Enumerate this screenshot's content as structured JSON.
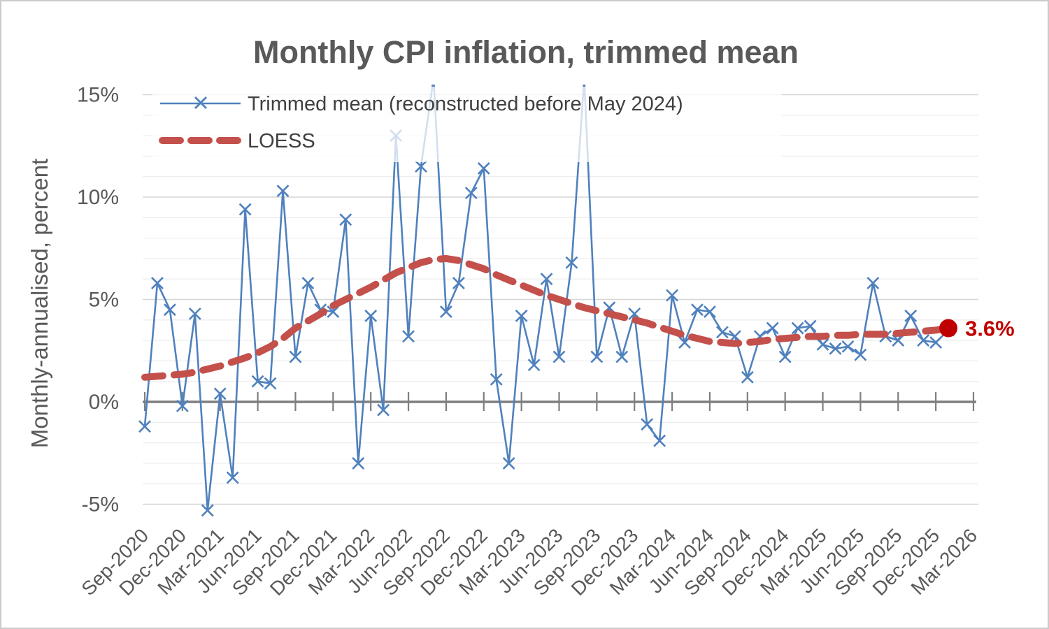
{
  "chart_data": {
    "type": "line",
    "title": "Monthly CPI inflation, trimmed mean",
    "ylabel": "Monthly-annualised, percent",
    "xlabel": "",
    "ylim": [
      -5,
      15
    ],
    "y_ticks": [
      {
        "label": "15%",
        "value": 15
      },
      {
        "label": "10%",
        "value": 10
      },
      {
        "label": "5%",
        "value": 5
      },
      {
        "label": "0%",
        "value": 0
      },
      {
        "label": "-5%",
        "value": -5
      }
    ],
    "grid": "horizontal-minor-1pct",
    "legend_position": "top-left-inside",
    "x_start": "Sep-2020",
    "x_end": "Mar-2026",
    "x_tick_interval_months": 3,
    "x_tick_labels": [
      "Sep-2020",
      "Dec-2020",
      "Mar-2021",
      "Jun-2021",
      "Sep-2021",
      "Dec-2021",
      "Mar-2022",
      "Jun-2022",
      "Sep-2022",
      "Dec-2022",
      "Mar-2023",
      "Jun-2023",
      "Sep-2023",
      "Dec-2023",
      "Mar-2024",
      "Jun-2024",
      "Sep-2024",
      "Dec-2024",
      "Mar-2025",
      "Jun-2025",
      "Sep-2025",
      "Dec-2025",
      "Mar-2026"
    ],
    "series": [
      {
        "name": "Trimmed mean (reconstructed before May 2024)",
        "marker": "x",
        "style": "solid",
        "first_month": "Sep-2020",
        "values": [
          -1.2,
          5.8,
          4.5,
          -0.2,
          4.3,
          -5.3,
          0.4,
          -3.7,
          9.4,
          1.0,
          0.9,
          10.3,
          2.2,
          5.8,
          4.5,
          4.4,
          8.9,
          -3.0,
          4.2,
          -0.4,
          13.0,
          3.2,
          11.5,
          15.8,
          4.4,
          5.8,
          10.2,
          11.4,
          1.1,
          -3.0,
          4.2,
          1.8,
          6.0,
          2.2,
          6.8,
          15.8,
          2.2,
          4.6,
          2.2,
          4.3,
          -1.1,
          -1.9,
          5.2,
          2.9,
          4.5,
          4.4,
          3.4,
          3.2,
          1.2,
          3.2,
          3.6,
          2.2,
          3.6,
          3.7,
          2.8,
          2.6,
          2.7,
          2.3,
          5.8,
          3.2,
          3.0,
          4.2,
          3.0,
          2.9,
          3.5
        ]
      },
      {
        "name": "LOESS",
        "marker": "none",
        "style": "dashed",
        "first_month": "Sep-2020",
        "values": [
          1.2,
          1.25,
          1.3,
          1.35,
          1.45,
          1.6,
          1.75,
          1.95,
          2.15,
          2.4,
          2.7,
          3.1,
          3.6,
          3.95,
          4.3,
          4.7,
          5.0,
          5.3,
          5.6,
          5.95,
          6.3,
          6.55,
          6.8,
          6.95,
          7.0,
          6.9,
          6.7,
          6.5,
          6.2,
          5.95,
          5.7,
          5.45,
          5.2,
          5.0,
          4.8,
          4.6,
          4.45,
          4.3,
          4.15,
          4.0,
          3.85,
          3.65,
          3.45,
          3.25,
          3.1,
          2.95,
          2.9,
          2.85,
          2.9,
          2.95,
          3.05,
          3.1,
          3.15,
          3.2,
          3.2,
          3.25,
          3.25,
          3.3,
          3.3,
          3.3,
          3.35,
          3.4,
          3.45,
          3.5,
          3.6
        ]
      }
    ],
    "end_annotation": {
      "label": "3.6%",
      "value": 3.6,
      "month_index": 64,
      "month": "Jan-2026"
    },
    "colors": {
      "trimmed_mean": "#4f81bd",
      "loess": "#c4504b",
      "annotation": "#c00000",
      "text": "#595959",
      "axis": "#7f7f7f",
      "grid_major": "#d6d6d6",
      "grid_minor": "#eeeeee",
      "legend_background": "rgba(255,255,255,0.75)"
    }
  }
}
